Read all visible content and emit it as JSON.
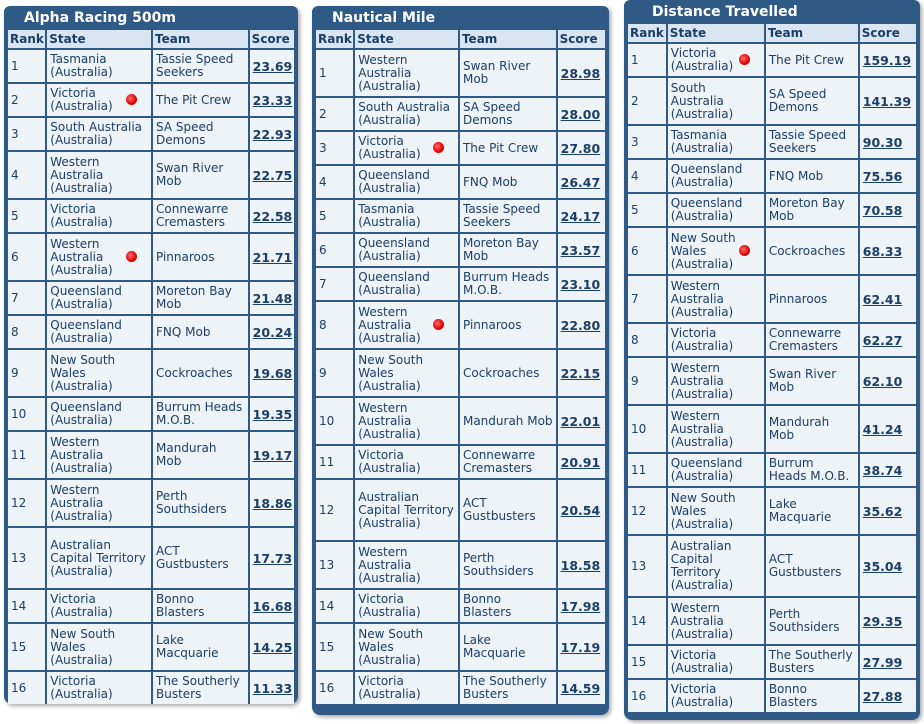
{
  "columns": {
    "rank": "Rank",
    "state": "State",
    "team": "Team",
    "score": "Score"
  },
  "highlight_team": "The Pit Crew",
  "colors": {
    "panel": "#2f5a86",
    "header_cell": "#d9e6f2",
    "body_cell": "#eef3f8",
    "text": "#1b3f66",
    "marker": "#e00000"
  },
  "tables": [
    {
      "title": "Alpha Racing 500m",
      "rows": [
        {
          "rank": "1",
          "state": "Tasmania (Australia)",
          "team": "Tassie Speed Seekers",
          "score": "23.69",
          "marked": false
        },
        {
          "rank": "2",
          "state": "Victoria (Australia)",
          "team": "The Pit Crew",
          "score": "23.33",
          "marked": true
        },
        {
          "rank": "3",
          "state": "South Australia (Australia)",
          "team": "SA Speed Demons",
          "score": "22.93",
          "marked": false
        },
        {
          "rank": "4",
          "state": "Western Australia (Australia)",
          "team": "Swan River Mob",
          "score": "22.75",
          "marked": false
        },
        {
          "rank": "5",
          "state": "Victoria (Australia)",
          "team": "Connewarre Cremasters",
          "score": "22.58",
          "marked": false
        },
        {
          "rank": "6",
          "state": "Western Australia (Australia)",
          "team": "Pinnaroos",
          "score": "21.71",
          "marked": true
        },
        {
          "rank": "7",
          "state": "Queensland (Australia)",
          "team": "Moreton Bay Mob",
          "score": "21.48",
          "marked": false
        },
        {
          "rank": "8",
          "state": "Queensland (Australia)",
          "team": "FNQ Mob",
          "score": "20.24",
          "marked": false
        },
        {
          "rank": "9",
          "state": "New South Wales (Australia)",
          "team": "Cockroaches",
          "score": "19.68",
          "marked": false
        },
        {
          "rank": "10",
          "state": "Queensland (Australia)",
          "team": "Burrum Heads M.O.B.",
          "score": "19.35",
          "marked": false
        },
        {
          "rank": "11",
          "state": "Western Australia (Australia)",
          "team": "Mandurah Mob",
          "score": "19.17",
          "marked": false
        },
        {
          "rank": "12",
          "state": "Western Australia (Australia)",
          "team": "Perth Southsiders",
          "score": "18.86",
          "marked": false
        },
        {
          "rank": "13",
          "state": "Australian Capital Territory (Australia)",
          "team": "ACT Gustbusters",
          "score": "17.73",
          "marked": false
        },
        {
          "rank": "14",
          "state": "Victoria (Australia)",
          "team": "Bonno Blasters",
          "score": "16.68",
          "marked": false
        },
        {
          "rank": "15",
          "state": "New South Wales (Australia)",
          "team": "Lake Macquarie",
          "score": "14.25",
          "marked": false
        },
        {
          "rank": "16",
          "state": "Victoria (Australia)",
          "team": "The Southerly Busters",
          "score": "11.33",
          "marked": false
        }
      ]
    },
    {
      "title": "Nautical Mile",
      "rows": [
        {
          "rank": "1",
          "state": "Western Australia (Australia)",
          "team": "Swan River Mob",
          "score": "28.98",
          "marked": false
        },
        {
          "rank": "2",
          "state": "South Australia (Australia)",
          "team": "SA Speed Demons",
          "score": "28.00",
          "marked": false
        },
        {
          "rank": "3",
          "state": "Victoria (Australia)",
          "team": "The Pit Crew",
          "score": "27.80",
          "marked": true
        },
        {
          "rank": "4",
          "state": "Queensland (Australia)",
          "team": "FNQ Mob",
          "score": "26.47",
          "marked": false
        },
        {
          "rank": "5",
          "state": "Tasmania (Australia)",
          "team": "Tassie Speed Seekers",
          "score": "24.17",
          "marked": false
        },
        {
          "rank": "6",
          "state": "Queensland (Australia)",
          "team": "Moreton Bay Mob",
          "score": "23.57",
          "marked": false
        },
        {
          "rank": "7",
          "state": "Queensland (Australia)",
          "team": "Burrum Heads M.O.B.",
          "score": "23.10",
          "marked": false
        },
        {
          "rank": "8",
          "state": "Western Australia (Australia)",
          "team": "Pinnaroos",
          "score": "22.80",
          "marked": true
        },
        {
          "rank": "9",
          "state": "New South Wales (Australia)",
          "team": "Cockroaches",
          "score": "22.15",
          "marked": false
        },
        {
          "rank": "10",
          "state": "Western Australia (Australia)",
          "team": "Mandurah Mob",
          "score": "22.01",
          "marked": false
        },
        {
          "rank": "11",
          "state": "Victoria (Australia)",
          "team": "Connewarre Cremasters",
          "score": "20.91",
          "marked": false
        },
        {
          "rank": "12",
          "state": "Australian Capital Territory (Australia)",
          "team": "ACT Gustbusters",
          "score": "20.54",
          "marked": false
        },
        {
          "rank": "13",
          "state": "Western Australia (Australia)",
          "team": "Perth Southsiders",
          "score": "18.58",
          "marked": false
        },
        {
          "rank": "14",
          "state": "Victoria (Australia)",
          "team": "Bonno Blasters",
          "score": "17.98",
          "marked": false
        },
        {
          "rank": "15",
          "state": "New South Wales (Australia)",
          "team": "Lake Macquarie",
          "score": "17.19",
          "marked": false
        },
        {
          "rank": "16",
          "state": "Victoria (Australia)",
          "team": "The Southerly Busters",
          "score": "14.59",
          "marked": false
        }
      ]
    },
    {
      "title": "Distance Travelled",
      "rows": [
        {
          "rank": "1",
          "state": "Victoria (Australia)",
          "team": "The Pit Crew",
          "score": "159.19",
          "marked": true
        },
        {
          "rank": "2",
          "state": "South Australia (Australia)",
          "team": "SA Speed Demons",
          "score": "141.39",
          "marked": false
        },
        {
          "rank": "3",
          "state": "Tasmania (Australia)",
          "team": "Tassie Speed Seekers",
          "score": "90.30",
          "marked": false
        },
        {
          "rank": "4",
          "state": "Queensland (Australia)",
          "team": "FNQ Mob",
          "score": "75.56",
          "marked": false
        },
        {
          "rank": "5",
          "state": "Queensland (Australia)",
          "team": "Moreton Bay Mob",
          "score": "70.58",
          "marked": false
        },
        {
          "rank": "6",
          "state": "New South Wales (Australia)",
          "team": "Cockroaches",
          "score": "68.33",
          "marked": true
        },
        {
          "rank": "7",
          "state": "Western Australia (Australia)",
          "team": "Pinnaroos",
          "score": "62.41",
          "marked": false
        },
        {
          "rank": "8",
          "state": "Victoria (Australia)",
          "team": "Connewarre Cremasters",
          "score": "62.27",
          "marked": false
        },
        {
          "rank": "9",
          "state": "Western Australia (Australia)",
          "team": "Swan River Mob",
          "score": "62.10",
          "marked": false
        },
        {
          "rank": "10",
          "state": "Western Australia (Australia)",
          "team": "Mandurah Mob",
          "score": "41.24",
          "marked": false
        },
        {
          "rank": "11",
          "state": "Queensland (Australia)",
          "team": "Burrum Heads M.O.B.",
          "score": "38.74",
          "marked": false
        },
        {
          "rank": "12",
          "state": "New South Wales (Australia)",
          "team": "Lake Macquarie",
          "score": "35.62",
          "marked": false
        },
        {
          "rank": "13",
          "state": "Australian Capital Territory (Australia)",
          "team": "ACT Gustbusters",
          "score": "35.04",
          "marked": false
        },
        {
          "rank": "14",
          "state": "Western Australia (Australia)",
          "team": "Perth Southsiders",
          "score": "29.35",
          "marked": false
        },
        {
          "rank": "15",
          "state": "Victoria (Australia)",
          "team": "The Southerly Busters",
          "score": "27.99",
          "marked": false
        },
        {
          "rank": "16",
          "state": "Victoria (Australia)",
          "team": "Bonno Blasters",
          "score": "27.88",
          "marked": false
        }
      ]
    }
  ]
}
